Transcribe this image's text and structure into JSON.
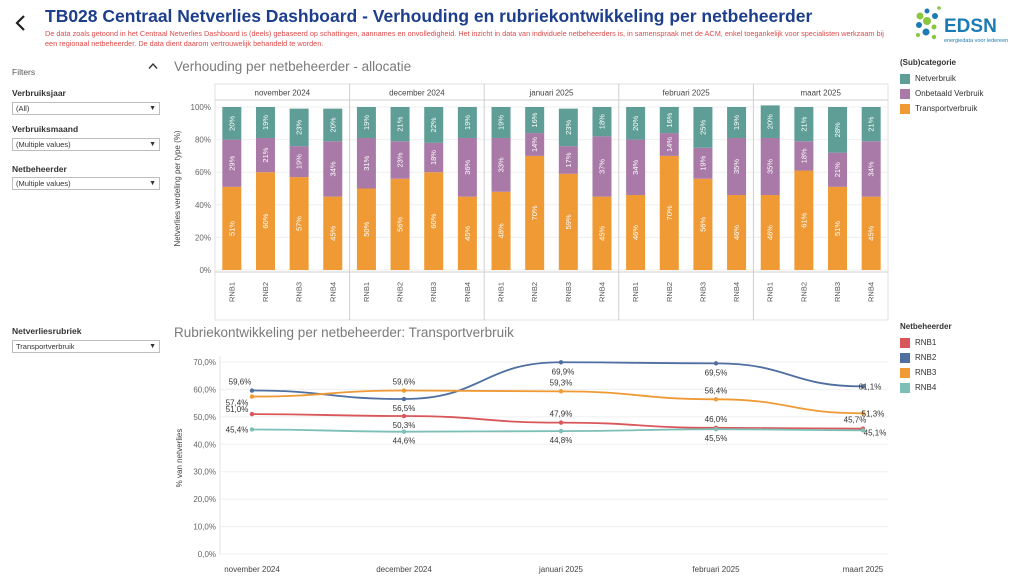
{
  "header": {
    "title": "TB028 Centraal Netverlies Dashboard - Verhouding en rubriekontwikkeling per netbeheerder",
    "disclaimer": "De data zoals getoond in het Centraal Netverlies Dashboard is (deels) gebaseerd op schattingen, aannames en onvolledigheid. Het inzicht in data van individuele netbeheerders is, in samenspraak met de ACM, enkel toegankelijk voor specialisten werkzaam bij een regionaal netbeheerder. De data dient daarom vertrouwelijk behandeld te worden.",
    "logo_text": "EDSN",
    "logo_sub": "energiedata voor iedereen"
  },
  "filters": {
    "label": "Filters",
    "jaar": {
      "label": "Verbruiksjaar",
      "value": "(All)"
    },
    "maand": {
      "label": "Verbruiksmaand",
      "value": "(Multiple values)"
    },
    "netbeheerder": {
      "label": "Netbeheerder",
      "value": "(Multiple values)"
    },
    "rubriek": {
      "label": "Netverliesrubriek",
      "value": "Transportverbruik"
    }
  },
  "colors": {
    "netverbruik": "#5f9e96",
    "onbetaald": "#a97aa8",
    "transport": "#ef9a35",
    "rnb1": "#d9575b",
    "rnb2": "#4e6fa0",
    "rnb3": "#ef9a35",
    "rnb4": "#7dbfb7"
  },
  "chart_data": [
    {
      "type": "bar",
      "title": "Verhouding per netbeheerder - allocatie",
      "ylabel": "Netverlies verdeling per type (%)",
      "ylim": [
        0,
        100
      ],
      "yticks": [
        "0%",
        "20%",
        "40%",
        "60%",
        "80%",
        "100%"
      ],
      "months": [
        "november 2024",
        "december 2024",
        "januari 2025",
        "februari 2025",
        "maart 2025"
      ],
      "categories": [
        "RNB1",
        "RNB2",
        "RNB3",
        "RNB4"
      ],
      "legend_title": "(Sub)categorie",
      "series": [
        {
          "name": "Transportverbruik",
          "values": [
            [
              51,
              60,
              57,
              45
            ],
            [
              50,
              56,
              60,
              45
            ],
            [
              48,
              70,
              59,
              45
            ],
            [
              46,
              70,
              56,
              46
            ],
            [
              46,
              61,
              51,
              45
            ]
          ]
        },
        {
          "name": "Onbetaald Verbruik",
          "values": [
            [
              29,
              21,
              19,
              34
            ],
            [
              31,
              23,
              18,
              36
            ],
            [
              33,
              14,
              17,
              37
            ],
            [
              34,
              14,
              19,
              35
            ],
            [
              35,
              18,
              21,
              34
            ]
          ]
        },
        {
          "name": "Netverbruik",
          "values": [
            [
              20,
              19,
              23,
              20
            ],
            [
              19,
              21,
              22,
              19
            ],
            [
              19,
              16,
              23,
              18
            ],
            [
              20,
              16,
              25,
              19
            ],
            [
              20,
              21,
              28,
              21
            ]
          ]
        }
      ]
    },
    {
      "type": "line",
      "title": "Rubriekontwikkeling per netbeheerder: Transportverbruik",
      "ylabel": "% van netverlies",
      "ylim": [
        0,
        70
      ],
      "yticks": [
        "0,0%",
        "10,0%",
        "20,0%",
        "30,0%",
        "40,0%",
        "50,0%",
        "60,0%",
        "70,0%"
      ],
      "x": [
        "november 2024",
        "december 2024",
        "januari 2025",
        "februari 2025",
        "maart 2025"
      ],
      "legend_title": "Netbeheerder",
      "series": [
        {
          "name": "RNB1",
          "values": [
            51.0,
            50.3,
            47.9,
            46.0,
            45.7
          ],
          "labels": [
            "51,0%",
            "50,3%",
            "47,9%",
            "46,0%",
            "45,7%"
          ]
        },
        {
          "name": "RNB2",
          "values": [
            59.6,
            56.5,
            69.9,
            69.5,
            61.1
          ],
          "labels": [
            "59,6%",
            "56,5%",
            "69,9%",
            "69,5%",
            "61,1%"
          ]
        },
        {
          "name": "RNB3",
          "values": [
            57.4,
            59.6,
            59.3,
            56.4,
            51.3
          ],
          "labels": [
            "57,4%",
            "59,6%",
            "59,3%",
            "56,4%",
            "51,3%"
          ]
        },
        {
          "name": "RNB4",
          "values": [
            45.4,
            44.6,
            44.8,
            45.5,
            45.1
          ],
          "labels": [
            "45,4%",
            "44,6%",
            "44,8%",
            "45,5%",
            "45,1%"
          ]
        }
      ]
    }
  ]
}
